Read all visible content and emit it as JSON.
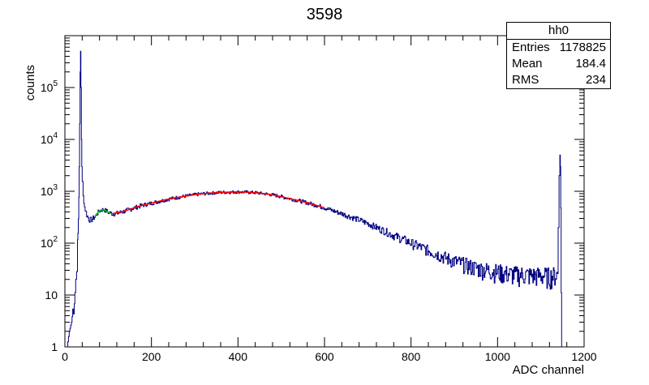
{
  "chart_data": {
    "type": "histogram",
    "title": "3598",
    "xlabel": "ADC channel",
    "ylabel": "counts",
    "xlim": [
      0,
      1200
    ],
    "ylim": [
      1,
      1000000
    ],
    "yscale": "log",
    "xticks": [
      0,
      200,
      400,
      600,
      800,
      1000,
      1200
    ],
    "xtick_labels": [
      "0",
      "200",
      "400",
      "600",
      "800",
      "1000",
      "1200"
    ],
    "yticks": [
      1,
      10,
      100,
      1000,
      10000,
      100000
    ],
    "ytick_labels": [
      {
        "base": "1",
        "exp": ""
      },
      {
        "base": "10",
        "exp": ""
      },
      {
        "base": "10",
        "exp": "2"
      },
      {
        "base": "10",
        "exp": "3"
      },
      {
        "base": "10",
        "exp": "4"
      },
      {
        "base": "10",
        "exp": "5"
      }
    ],
    "grid": false,
    "series": [
      {
        "type": "histogram",
        "color": "#000080",
        "points": [
          [
            0,
            1
          ],
          [
            5,
            1
          ],
          [
            10,
            2
          ],
          [
            15,
            3
          ],
          [
            18,
            5
          ],
          [
            20,
            8
          ],
          [
            23,
            12
          ],
          [
            25,
            20
          ],
          [
            27,
            40
          ],
          [
            29,
            100
          ],
          [
            30,
            150
          ],
          [
            31,
            300
          ],
          [
            32,
            800
          ],
          [
            33,
            3000
          ],
          [
            34,
            20000
          ],
          [
            35,
            200000
          ],
          [
            36,
            500000
          ],
          [
            37,
            100000
          ],
          [
            38,
            10000
          ],
          [
            39,
            3000
          ],
          [
            40,
            1500
          ],
          [
            42,
            800
          ],
          [
            45,
            500
          ],
          [
            50,
            350
          ],
          [
            55,
            290
          ],
          [
            60,
            280
          ],
          [
            65,
            300
          ],
          [
            70,
            330
          ],
          [
            75,
            380
          ],
          [
            80,
            420
          ],
          [
            85,
            440
          ],
          [
            90,
            440
          ],
          [
            95,
            420
          ],
          [
            100,
            395
          ],
          [
            105,
            380
          ],
          [
            110,
            370
          ],
          [
            120,
            375
          ],
          [
            140,
            420
          ],
          [
            160,
            480
          ],
          [
            180,
            540
          ],
          [
            200,
            590
          ],
          [
            220,
            650
          ],
          [
            240,
            710
          ],
          [
            260,
            760
          ],
          [
            280,
            810
          ],
          [
            300,
            860
          ],
          [
            320,
            900
          ],
          [
            340,
            930
          ],
          [
            360,
            950
          ],
          [
            380,
            960
          ],
          [
            400,
            970
          ],
          [
            420,
            960
          ],
          [
            440,
            940
          ],
          [
            460,
            900
          ],
          [
            480,
            850
          ],
          [
            500,
            790
          ],
          [
            520,
            720
          ],
          [
            540,
            660
          ],
          [
            560,
            600
          ],
          [
            580,
            540
          ],
          [
            600,
            480
          ],
          [
            620,
            420
          ],
          [
            640,
            370
          ],
          [
            660,
            320
          ],
          [
            680,
            280
          ],
          [
            700,
            240
          ],
          [
            720,
            200
          ],
          [
            740,
            170
          ],
          [
            760,
            140
          ],
          [
            780,
            120
          ],
          [
            800,
            100
          ],
          [
            820,
            85
          ],
          [
            840,
            72
          ],
          [
            860,
            62
          ],
          [
            880,
            52
          ],
          [
            900,
            45
          ],
          [
            920,
            40
          ],
          [
            940,
            35
          ],
          [
            960,
            32
          ],
          [
            980,
            30
          ],
          [
            1000,
            28
          ],
          [
            1020,
            26
          ],
          [
            1040,
            25
          ],
          [
            1060,
            25
          ],
          [
            1080,
            24
          ],
          [
            1100,
            24
          ],
          [
            1120,
            23
          ],
          [
            1138,
            25
          ],
          [
            1140,
            200
          ],
          [
            1142,
            2000
          ],
          [
            1144,
            5000
          ],
          [
            1145,
            3000
          ],
          [
            1146,
            500
          ],
          [
            1147,
            20
          ],
          [
            1148,
            1
          ]
        ]
      },
      {
        "type": "fit",
        "color": "#ff0000",
        "points": [
          [
            110,
            370
          ],
          [
            140,
            420
          ],
          [
            160,
            480
          ],
          [
            180,
            540
          ],
          [
            200,
            590
          ],
          [
            220,
            650
          ],
          [
            240,
            710
          ],
          [
            260,
            760
          ],
          [
            280,
            810
          ],
          [
            300,
            860
          ],
          [
            320,
            900
          ],
          [
            340,
            930
          ],
          [
            360,
            950
          ],
          [
            380,
            960
          ],
          [
            400,
            970
          ],
          [
            420,
            960
          ],
          [
            440,
            940
          ],
          [
            460,
            900
          ],
          [
            480,
            850
          ],
          [
            500,
            790
          ],
          [
            520,
            720
          ],
          [
            540,
            660
          ],
          [
            560,
            600
          ],
          [
            580,
            540
          ],
          [
            600,
            480
          ]
        ]
      },
      {
        "type": "fit",
        "color": "#00cc00",
        "points": [
          [
            70,
            330
          ],
          [
            75,
            380
          ],
          [
            80,
            420
          ],
          [
            85,
            440
          ],
          [
            90,
            440
          ],
          [
            95,
            420
          ],
          [
            100,
            395
          ],
          [
            105,
            380
          ]
        ]
      }
    ]
  },
  "stats": {
    "title": "hh0",
    "rows": [
      {
        "label": "Entries",
        "value": "1178825"
      },
      {
        "label": "Mean",
        "value": "184.4"
      },
      {
        "label": "RMS",
        "value": "234"
      }
    ]
  }
}
